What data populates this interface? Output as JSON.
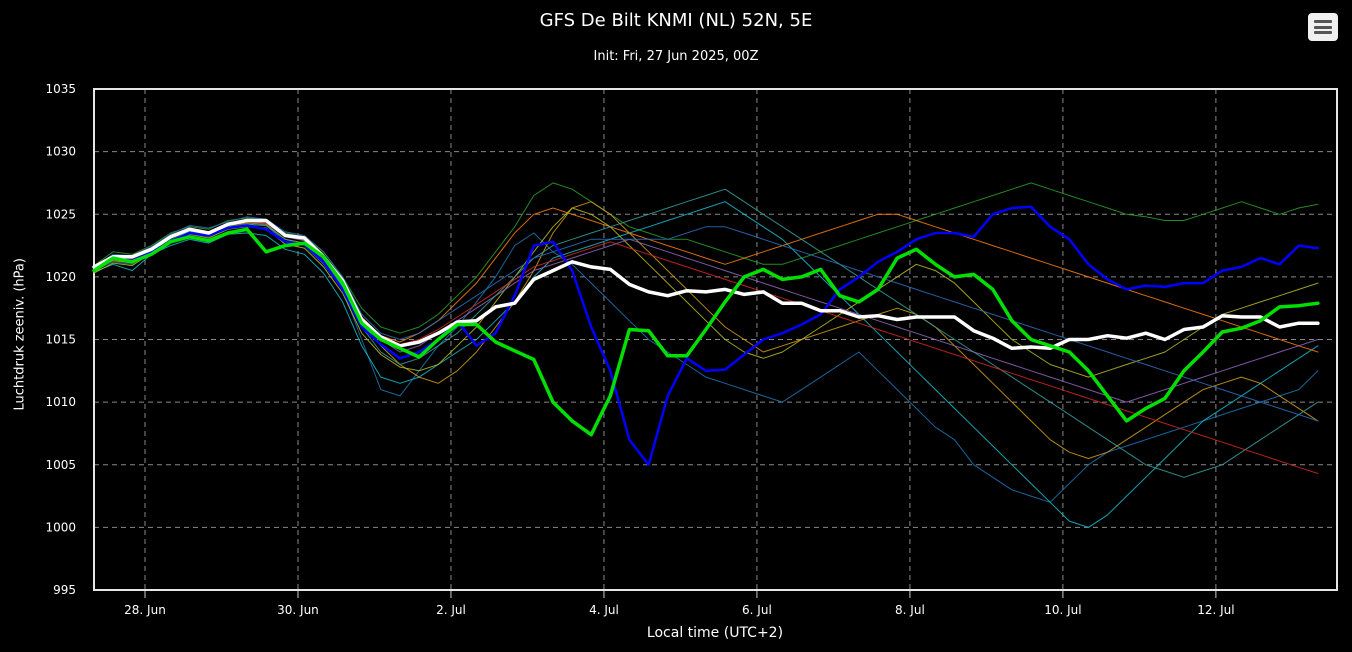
{
  "chart_data": {
    "type": "line",
    "title": "GFS De Bilt KNMI (NL) 52N, 5E",
    "subtitle": "Init: Fri, 27 Jun 2025, 00Z",
    "xlabel": "Local time (UTC+2)",
    "ylabel": "Luchtdruk zeeniv. (hPa)",
    "ylim": [
      995,
      1035
    ],
    "yticks": [
      995,
      1000,
      1005,
      1010,
      1015,
      1020,
      1025,
      1030,
      1035
    ],
    "xlim": [
      "2025-06-27 08:00",
      "2025-07-13 14:00"
    ],
    "xticks": [
      {
        "x": "2025-06-28",
        "label": "28. Jun"
      },
      {
        "x": "2025-06-30",
        "label": "30. Jun"
      },
      {
        "x": "2025-07-02",
        "label": "2. Jul"
      },
      {
        "x": "2025-07-04",
        "label": "4. Jul"
      },
      {
        "x": "2025-07-06",
        "label": "6. Jul"
      },
      {
        "x": "2025-07-08",
        "label": "8. Jul"
      },
      {
        "x": "2025-07-10",
        "label": "10. Jul"
      },
      {
        "x": "2025-07-12",
        "label": "12. Jul"
      }
    ],
    "grid": true,
    "background": "#000000",
    "x": [
      "2025-06-27 08:00",
      "2025-06-27 14:00",
      "2025-06-27 20:00",
      "2025-06-28 02:00",
      "2025-06-28 08:00",
      "2025-06-28 14:00",
      "2025-06-28 20:00",
      "2025-06-29 02:00",
      "2025-06-29 08:00",
      "2025-06-29 14:00",
      "2025-06-29 20:00",
      "2025-06-30 02:00",
      "2025-06-30 08:00",
      "2025-06-30 14:00",
      "2025-06-30 20:00",
      "2025-07-01 02:00",
      "2025-07-01 08:00",
      "2025-07-01 14:00",
      "2025-07-01 20:00",
      "2025-07-02 02:00",
      "2025-07-02 08:00",
      "2025-07-02 14:00",
      "2025-07-02 20:00",
      "2025-07-03 02:00",
      "2025-07-03 08:00",
      "2025-07-03 14:00",
      "2025-07-03 20:00",
      "2025-07-04 02:00",
      "2025-07-04 08:00",
      "2025-07-04 14:00",
      "2025-07-04 20:00",
      "2025-07-05 02:00",
      "2025-07-05 08:00",
      "2025-07-05 14:00",
      "2025-07-05 20:00",
      "2025-07-06 02:00",
      "2025-07-06 08:00",
      "2025-07-06 14:00",
      "2025-07-06 20:00",
      "2025-07-07 02:00",
      "2025-07-07 08:00",
      "2025-07-07 14:00",
      "2025-07-07 20:00",
      "2025-07-08 02:00",
      "2025-07-08 08:00",
      "2025-07-08 14:00",
      "2025-07-08 20:00",
      "2025-07-09 02:00",
      "2025-07-09 08:00",
      "2025-07-09 14:00",
      "2025-07-09 20:00",
      "2025-07-10 02:00",
      "2025-07-10 08:00",
      "2025-07-10 14:00",
      "2025-07-10 20:00",
      "2025-07-11 02:00",
      "2025-07-11 08:00",
      "2025-07-11 14:00",
      "2025-07-11 20:00",
      "2025-07-12 02:00",
      "2025-07-12 08:00",
      "2025-07-12 14:00",
      "2025-07-12 20:00",
      "2025-07-13 02:00",
      "2025-07-13 08:00"
    ],
    "series": [
      {
        "color": "#ffffff",
        "width": 3.5,
        "values": [
          1020.8,
          1021.6,
          1021.6,
          1022.2,
          1023.2,
          1023.8,
          1023.5,
          1024.2,
          1024.5,
          1024.5,
          1023.3,
          1023.1,
          1021.6,
          1019.7,
          1016.6,
          1015.2,
          1014.5,
          1014.8,
          1015.5,
          1016.4,
          1016.5,
          1017.6,
          1017.9,
          1019.8,
          1020.5,
          1021.2,
          1020.8,
          1020.6,
          1019.4,
          1018.8,
          1018.5,
          1018.9,
          1018.8,
          1019.0,
          1018.6,
          1018.8,
          1017.9,
          1017.9,
          1017.3,
          1017.3,
          1016.8,
          1016.9,
          1016.6,
          1016.8,
          1016.8,
          1016.8,
          1015.7,
          1015.1,
          1014.3,
          1014.4,
          1014.3,
          1015.0,
          1015.0,
          1015.3,
          1015.1,
          1015.5,
          1015.0,
          1015.8,
          1016.0,
          1016.9,
          1016.8,
          1016.8,
          1016.0,
          1016.3,
          1016.3
        ]
      },
      {
        "color": "#0000ff",
        "width": 2.5,
        "values": [
          1020.5,
          1021.5,
          1021.3,
          1022.0,
          1022.8,
          1023.5,
          1023.3,
          1023.9,
          1024.1,
          1023.8,
          1022.8,
          1022.6,
          1021.2,
          1019.0,
          1016.0,
          1014.6,
          1013.5,
          1014.0,
          1015.0,
          1016.5,
          1014.5,
          1015.5,
          1018.5,
          1022.5,
          1022.8,
          1020.5,
          1016.0,
          1012.5,
          1007.0,
          1005.0,
          1010.5,
          1013.5,
          1012.5,
          1012.6,
          1013.8,
          1015.0,
          1015.5,
          1016.2,
          1017.0,
          1019.0,
          1020.0,
          1021.2,
          1022.0,
          1023.0,
          1023.5,
          1023.5,
          1023.2,
          1025.0,
          1025.5,
          1025.6,
          1024.0,
          1023.0,
          1021.0,
          1019.8,
          1019.0,
          1019.3,
          1019.2,
          1019.5,
          1019.5,
          1020.5,
          1020.8,
          1021.5,
          1021.0,
          1022.5,
          1022.3
        ]
      },
      {
        "color": "#00e000",
        "width": 3.5,
        "values": [
          1020.5,
          1021.5,
          1021.2,
          1021.8,
          1022.8,
          1023.2,
          1022.9,
          1023.5,
          1023.8,
          1022.0,
          1022.5,
          1022.7,
          1021.6,
          1019.5,
          1016.3,
          1015.0,
          1014.3,
          1013.6,
          1015.0,
          1016.2,
          1016.2,
          1014.8,
          1014.1,
          1013.4,
          1010.0,
          1008.5,
          1007.4,
          1010.5,
          1015.8,
          1015.7,
          1013.7,
          1013.7,
          1015.8,
          1018.0,
          1020.0,
          1020.6,
          1019.8,
          1020.0,
          1020.6,
          1018.5,
          1018.0,
          1019.0,
          1021.5,
          1022.2,
          1021.0,
          1020.0,
          1020.2,
          1019.0,
          1016.5,
          1015.0,
          1014.5,
          1014.0,
          1012.5,
          1010.5,
          1008.5,
          1009.5,
          1010.3,
          1012.5,
          1014.0,
          1015.6,
          1015.9,
          1016.5,
          1017.6,
          1017.7,
          1017.9
        ]
      },
      {
        "color": "#1f77b4",
        "width": 1,
        "values": [
          1020.5,
          1021.2,
          1021.0,
          1022.1,
          1023.0,
          1023.5,
          1023.2,
          1024.0,
          1024.2,
          1024.1,
          1022.8,
          1022.5,
          1021.0,
          1019.0,
          1015.0,
          1011.0,
          1010.5,
          1012.5,
          1014.5,
          1016.0,
          1018.0,
          1020.0,
          1022.5,
          1023.5,
          1022.0,
          1021.0,
          1019.5,
          1018.0,
          1016.5,
          1015.0,
          1014.0,
          1013.0,
          1012.0,
          1011.5,
          1011.0,
          1010.5,
          1010.0,
          1011.0,
          1012.0,
          1013.0,
          1014.0,
          1012.5,
          1011.0,
          1009.5,
          1008.0,
          1007.0,
          1005.0,
          1004.0,
          1003.0,
          1002.5,
          1002.0,
          1003.5,
          1005.0,
          1006.0,
          1006.5,
          1007.0,
          1007.5,
          1008.0,
          1008.5,
          1009.0,
          1009.5,
          1010.0,
          1010.5,
          1011.0,
          1012.5
        ]
      },
      {
        "color": "#2ca02c",
        "width": 1,
        "values": [
          1020.9,
          1022.0,
          1021.8,
          1022.5,
          1023.5,
          1024.0,
          1023.8,
          1024.5,
          1024.7,
          1024.5,
          1023.5,
          1023.2,
          1022.0,
          1020.0,
          1017.5,
          1016.0,
          1015.5,
          1016.0,
          1017.0,
          1018.5,
          1020.0,
          1022.0,
          1024.0,
          1026.5,
          1027.5,
          1027.0,
          1026.0,
          1025.0,
          1024.0,
          1023.5,
          1023.0,
          1023.0,
          1022.5,
          1022.0,
          1021.5,
          1021.0,
          1021.0,
          1021.5,
          1022.0,
          1022.5,
          1023.0,
          1023.5,
          1024.0,
          1024.5,
          1025.0,
          1025.5,
          1026.0,
          1026.5,
          1027.0,
          1027.5,
          1027.0,
          1026.5,
          1026.0,
          1025.5,
          1025.0,
          1024.8,
          1024.5,
          1024.5,
          1025.0,
          1025.5,
          1026.0,
          1025.5,
          1025.0,
          1025.5,
          1025.8
        ]
      },
      {
        "color": "#17becf",
        "width": 1,
        "values": [
          1020.4,
          1021.0,
          1020.5,
          1021.8,
          1022.5,
          1023.0,
          1022.7,
          1023.4,
          1023.5,
          1023.3,
          1022.2,
          1021.8,
          1020.3,
          1018.0,
          1014.5,
          1012.0,
          1011.5,
          1012.0,
          1013.0,
          1014.0,
          1015.0,
          1016.5,
          1018.0,
          1020.0,
          1021.5,
          1022.0,
          1022.5,
          1023.0,
          1023.5,
          1024.0,
          1024.5,
          1025.0,
          1025.5,
          1026.0,
          1025.0,
          1024.0,
          1023.0,
          1021.5,
          1020.0,
          1018.5,
          1017.0,
          1015.5,
          1014.0,
          1012.5,
          1011.0,
          1009.5,
          1008.0,
          1006.5,
          1005.0,
          1003.5,
          1002.0,
          1000.5,
          1000.0,
          1001.0,
          1002.5,
          1004.0,
          1005.5,
          1007.0,
          1008.5,
          1009.5,
          1010.5,
          1011.5,
          1012.5,
          1013.5,
          1014.5
        ]
      },
      {
        "color": "#d4a017",
        "width": 1,
        "values": [
          1020.6,
          1021.3,
          1021.1,
          1022.0,
          1023.1,
          1023.6,
          1023.4,
          1024.1,
          1024.3,
          1024.2,
          1023.0,
          1022.7,
          1021.3,
          1019.3,
          1016.3,
          1014.5,
          1013.0,
          1012.0,
          1011.5,
          1012.5,
          1014.0,
          1016.0,
          1018.0,
          1020.5,
          1023.5,
          1025.5,
          1026.0,
          1025.0,
          1023.5,
          1022.0,
          1020.5,
          1019.0,
          1017.5,
          1016.0,
          1015.0,
          1014.0,
          1014.5,
          1015.0,
          1015.5,
          1016.0,
          1016.5,
          1017.0,
          1017.5,
          1017.0,
          1016.0,
          1014.5,
          1013.0,
          1011.5,
          1010.0,
          1008.5,
          1007.0,
          1006.0,
          1005.5,
          1006.0,
          1007.0,
          1008.0,
          1009.0,
          1010.0,
          1011.0,
          1011.5,
          1012.0,
          1011.5,
          1010.5,
          1009.5,
          1008.5
        ]
      },
      {
        "color": "#ff7f0e",
        "width": 1,
        "values": [
          1020.7,
          1021.7,
          1021.5,
          1022.3,
          1023.3,
          1023.9,
          1023.6,
          1024.3,
          1024.6,
          1024.4,
          1023.4,
          1023.2,
          1021.8,
          1019.8,
          1016.8,
          1015.3,
          1014.8,
          1015.5,
          1016.5,
          1018.0,
          1019.5,
          1021.5,
          1023.5,
          1025.0,
          1025.5,
          1025.0,
          1024.5,
          1024.0,
          1023.5,
          1023.0,
          1022.5,
          1022.0,
          1021.5,
          1021.0,
          1021.5,
          1022.0,
          1022.5,
          1023.0,
          1023.5,
          1024.0,
          1024.5,
          1025.0,
          1025.0,
          1024.5,
          1024.0,
          1023.5,
          1023.0,
          1022.5,
          1022.0,
          1021.5,
          1021.0,
          1020.5,
          1020.0,
          1019.5,
          1019.0,
          1018.5,
          1018.0,
          1017.5,
          1017.0,
          1016.5,
          1016.0,
          1015.5,
          1015.0,
          1014.5,
          1014.0
        ]
      },
      {
        "color": "#bcbd22",
        "width": 1,
        "values": [
          1020.3,
          1021.1,
          1020.9,
          1021.9,
          1022.9,
          1023.4,
          1023.1,
          1023.8,
          1024.0,
          1023.9,
          1022.6,
          1022.3,
          1020.8,
          1018.7,
          1015.5,
          1013.8,
          1012.8,
          1012.5,
          1013.0,
          1014.5,
          1016.0,
          1018.0,
          1020.0,
          1022.0,
          1024.0,
          1025.5,
          1025.0,
          1024.0,
          1022.5,
          1021.0,
          1019.5,
          1018.0,
          1016.5,
          1015.0,
          1014.0,
          1013.5,
          1014.0,
          1015.0,
          1016.0,
          1017.0,
          1018.0,
          1019.0,
          1020.0,
          1021.0,
          1020.5,
          1019.5,
          1018.0,
          1016.5,
          1015.0,
          1014.0,
          1013.0,
          1012.5,
          1012.0,
          1012.5,
          1013.0,
          1013.5,
          1014.0,
          1015.0,
          1016.0,
          1017.0,
          1017.5,
          1018.0,
          1018.5,
          1019.0,
          1019.5
        ]
      },
      {
        "color": "#9467bd",
        "width": 1,
        "values": [
          1020.6,
          1021.5,
          1021.4,
          1022.2,
          1023.2,
          1023.7,
          1023.5,
          1024.2,
          1024.4,
          1024.3,
          1023.2,
          1022.9,
          1021.5,
          1019.5,
          1016.5,
          1015.0,
          1014.0,
          1014.5,
          1015.5,
          1016.5,
          1017.5,
          1018.5,
          1019.5,
          1020.5,
          1021.0,
          1021.5,
          1022.0,
          1022.5,
          1023.0,
          1022.5,
          1022.0,
          1021.5,
          1021.0,
          1020.5,
          1020.0,
          1019.5,
          1019.0,
          1018.5,
          1018.0,
          1017.5,
          1017.0,
          1016.5,
          1016.0,
          1015.5,
          1015.0,
          1014.5,
          1014.0,
          1013.5,
          1013.0,
          1012.5,
          1012.0,
          1011.5,
          1011.0,
          1010.5,
          1010.0,
          1010.5,
          1011.0,
          1011.5,
          1012.0,
          1012.5,
          1013.0,
          1013.5,
          1014.0,
          1014.5,
          1015.0
        ]
      },
      {
        "color": "#3aa0a0",
        "width": 1,
        "values": [
          1020.5,
          1021.4,
          1021.2,
          1022.1,
          1023.1,
          1023.6,
          1023.3,
          1024.0,
          1024.2,
          1024.1,
          1023.0,
          1022.6,
          1021.2,
          1019.2,
          1016.0,
          1014.0,
          1013.0,
          1013.5,
          1014.5,
          1015.5,
          1017.0,
          1018.5,
          1020.0,
          1021.5,
          1022.5,
          1023.0,
          1023.5,
          1024.0,
          1024.5,
          1025.0,
          1025.5,
          1026.0,
          1026.5,
          1027.0,
          1026.0,
          1025.0,
          1024.0,
          1023.0,
          1022.0,
          1021.0,
          1020.0,
          1019.0,
          1018.0,
          1017.0,
          1016.0,
          1015.0,
          1014.0,
          1013.0,
          1012.0,
          1011.0,
          1010.0,
          1009.0,
          1008.0,
          1007.0,
          1006.0,
          1005.0,
          1004.5,
          1004.0,
          1004.5,
          1005.0,
          1006.0,
          1007.0,
          1008.0,
          1009.0,
          1010.0
        ]
      },
      {
        "color": "#2e6fbf",
        "width": 1,
        "values": [
          1020.8,
          1021.8,
          1021.7,
          1022.4,
          1023.4,
          1024.1,
          1023.9,
          1024.4,
          1024.8,
          1024.6,
          1023.6,
          1023.3,
          1022.0,
          1020.0,
          1017.0,
          1015.5,
          1015.0,
          1015.5,
          1016.5,
          1017.5,
          1018.5,
          1019.5,
          1020.5,
          1021.5,
          1022.0,
          1022.5,
          1023.0,
          1023.0,
          1023.0,
          1023.0,
          1023.0,
          1023.5,
          1024.0,
          1024.0,
          1023.5,
          1023.0,
          1022.5,
          1022.0,
          1021.5,
          1021.0,
          1020.5,
          1020.0,
          1019.5,
          1019.0,
          1018.5,
          1018.0,
          1017.5,
          1017.0,
          1016.5,
          1016.0,
          1015.5,
          1015.0,
          1014.5,
          1014.0,
          1013.5,
          1013.0,
          1012.5,
          1012.0,
          1011.5,
          1011.0,
          1010.5,
          1010.0,
          1009.5,
          1009.0,
          1008.5
        ]
      },
      {
        "color": "#d62728",
        "width": 1,
        "values": [
          1020.7,
          1021.6,
          1021.4,
          1022.3,
          1023.3,
          1023.8,
          1023.6,
          1024.2,
          1024.5,
          1024.3,
          1023.3,
          1023.0,
          1021.7,
          1019.6,
          1016.6,
          1015.1,
          1014.6,
          1015.0,
          1015.8,
          1016.8,
          1017.8,
          1018.8,
          1019.8,
          1020.8,
          1021.3,
          1021.8,
          1022.3,
          1022.8,
          1022.3,
          1021.8,
          1021.3,
          1020.8,
          1020.3,
          1019.8,
          1019.3,
          1018.8,
          1018.3,
          1017.8,
          1017.3,
          1016.8,
          1016.3,
          1015.8,
          1015.3,
          1014.8,
          1014.3,
          1013.8,
          1013.3,
          1012.8,
          1012.3,
          1011.8,
          1011.3,
          1010.8,
          1010.3,
          1009.8,
          1009.3,
          1008.8,
          1008.3,
          1007.8,
          1007.3,
          1006.8,
          1006.3,
          1005.8,
          1005.3,
          1004.8,
          1004.3
        ]
      }
    ]
  },
  "menu": {
    "icon": "hamburger-icon"
  }
}
